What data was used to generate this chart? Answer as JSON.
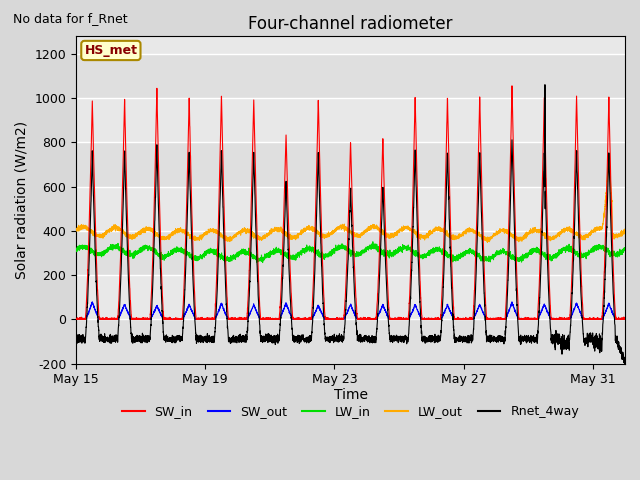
{
  "title": "Four-channel radiometer",
  "top_left_text": "No data for f_Rnet",
  "annotation_box": "HS_met",
  "xlabel": "Time",
  "ylabel": "Solar radiation (W/m2)",
  "ylim": [
    -200,
    1280
  ],
  "yticks": [
    -200,
    0,
    200,
    400,
    600,
    800,
    1000,
    1200
  ],
  "xtick_labels": [
    "May 15",
    "May 19",
    "May 23",
    "May 27",
    "May 31"
  ],
  "background_color": "#d8d8d8",
  "plot_bg_color": "#e8e8e8",
  "grid_color": "#ffffff",
  "legend_entries": [
    "SW_in",
    "SW_out",
    "LW_in",
    "LW_out",
    "Rnet_4way"
  ],
  "line_colors": [
    "#ff0000",
    "#0000ff",
    "#00dd00",
    "#ffaa00",
    "#000000"
  ],
  "LW_in_base": 300,
  "LW_out_base": 390,
  "n_points_per_day": 288
}
